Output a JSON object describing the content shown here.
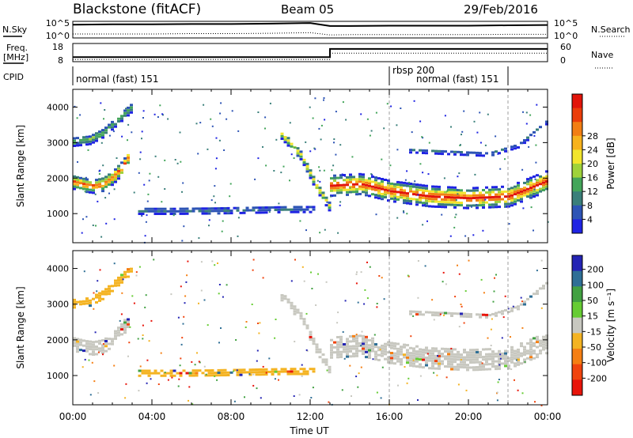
{
  "header": {
    "station": "Blackstone (fitACF)",
    "beam": "Beam 05",
    "date": "29/Feb/2016"
  },
  "chart_data": [
    {
      "type": "line",
      "panel": "noise",
      "left_label": "N.Sky",
      "right_label": "N.Search",
      "left_ticks": [
        "10^5",
        "10^0"
      ],
      "right_ticks": [
        "10^5",
        "10^0"
      ],
      "series": [
        {
          "name": "N.Sky",
          "style": "solid",
          "x": [
            0,
            2,
            4,
            6,
            8,
            10,
            12,
            13,
            14,
            16,
            18,
            20,
            22,
            24
          ],
          "y": [
            4.0,
            4.1,
            4.1,
            4.2,
            4.2,
            4.3,
            4.5,
            3.6,
            3.6,
            3.7,
            3.7,
            3.7,
            3.8,
            3.9
          ]
        },
        {
          "name": "N.Search",
          "style": "dotted",
          "x": [
            0,
            2,
            4,
            6,
            8,
            10,
            12,
            13,
            14,
            16,
            18,
            20,
            22,
            24
          ],
          "y": [
            1.2,
            1.2,
            1.2,
            1.3,
            1.3,
            1.4,
            1.6,
            0.9,
            1.0,
            1.0,
            1.0,
            1.0,
            1.1,
            1.1
          ]
        }
      ]
    },
    {
      "type": "line",
      "panel": "freq",
      "left_label": "Freq.",
      "left_unit": "[MHz]",
      "right_label": "Nave",
      "left_ticks": [
        "18",
        "8"
      ],
      "right_ticks": [
        "60",
        "0"
      ],
      "series": [
        {
          "name": "Freq.",
          "style": "solid",
          "x": [
            0,
            13.0,
            13.0,
            24
          ],
          "y": [
            10.5,
            10.5,
            15.0,
            15.0
          ]
        },
        {
          "name": "Nave",
          "style": "dotted",
          "x": [
            0,
            13.0,
            13.0,
            24
          ],
          "y": [
            7,
            7,
            28,
            28
          ]
        }
      ]
    },
    {
      "type": "table",
      "panel": "cpid",
      "label": "CPID",
      "segments": [
        {
          "start": 0,
          "end": 16,
          "text": "normal (fast) 151"
        },
        {
          "start": 16,
          "end": 22,
          "text": "rbsp 200"
        },
        {
          "start": 16,
          "end": 22,
          "text": "normal (fast) 151"
        }
      ]
    },
    {
      "type": "heatmap",
      "panel": "power",
      "ylabel": "Slant Range [km]",
      "xlim": [
        0,
        24
      ],
      "ylim": [
        180,
        4500
      ],
      "yticks": [
        1000,
        2000,
        3000,
        4000
      ],
      "colorbar_label": "Power [dB]",
      "colorbar_ticks": [
        "4",
        "8",
        "12",
        "16",
        "20",
        "24",
        "28"
      ],
      "colors": [
        "#1f23e3",
        "#2d54b5",
        "#3a7f7a",
        "#43a55a",
        "#9fd23a",
        "#f2e52c",
        "#f7b21c",
        "#f27e13",
        "#eb3d0a",
        "#e2140a"
      ],
      "bands": [
        {
          "x": [
            0.0,
            0.5,
            1.0,
            1.5,
            2.0,
            2.5,
            2.8
          ],
          "y_center": [
            1850,
            1780,
            1740,
            1800,
            2000,
            2300,
            2600
          ],
          "thickness": 380,
          "peak": 0.8
        },
        {
          "x": [
            0.0,
            0.8,
            1.5,
            2.2,
            2.9
          ],
          "y_center": [
            3000,
            3050,
            3250,
            3600,
            3950
          ],
          "thickness": 250,
          "peak": 0.35
        },
        {
          "x": [
            3.3,
            5,
            7,
            9,
            11,
            12.2
          ],
          "y_center": [
            1050,
            1050,
            1060,
            1080,
            1100,
            1100
          ],
          "thickness": 180,
          "peak": 0.15
        },
        {
          "x": [
            10.5,
            11.5,
            12.2,
            13.0
          ],
          "y_center": [
            3200,
            2600,
            1800,
            1100
          ],
          "thickness": 250,
          "peak": 0.55
        },
        {
          "x": [
            13.0,
            14.5,
            16,
            18,
            20,
            22,
            24
          ],
          "y_center": [
            1750,
            1800,
            1600,
            1450,
            1400,
            1450,
            1900
          ],
          "thickness": 560,
          "peak": 0.9
        },
        {
          "x": [
            17,
            19,
            21,
            22.5,
            24
          ],
          "y_center": [
            2750,
            2700,
            2650,
            2900,
            3600
          ],
          "thickness": 120,
          "peak": 0.15
        }
      ]
    },
    {
      "type": "heatmap",
      "panel": "velocity",
      "ylabel": "Slant Range [km]",
      "xlabel": "Time UT",
      "xlim": [
        0,
        24
      ],
      "ylim": [
        180,
        4500
      ],
      "xticks": [
        "00:00",
        "04:00",
        "08:00",
        "12:00",
        "16:00",
        "20:00",
        "00:00"
      ],
      "yticks": [
        1000,
        2000,
        3000,
        4000
      ],
      "colorbar_label": "Velocity [m s⁻¹]",
      "colorbar_ticks": [
        "200",
        "100",
        "50",
        "15",
        "-15",
        "-50",
        "-100",
        "-200"
      ],
      "colors": [
        "#2424b4",
        "#2f6f96",
        "#42a142",
        "#66cc33",
        "#c8c8c0",
        "#f4b322",
        "#f57f13",
        "#f0440e",
        "#e8140a"
      ],
      "bands": [
        {
          "x": [
            0.0,
            0.5,
            1.0,
            1.5,
            2.0,
            2.5,
            2.8
          ],
          "y_center": [
            1850,
            1780,
            1740,
            1800,
            2000,
            2300,
            2600
          ],
          "thickness": 380,
          "color": "#c8c8c0"
        },
        {
          "x": [
            0.0,
            0.8,
            1.5,
            2.2,
            2.9
          ],
          "y_center": [
            3000,
            3050,
            3250,
            3600,
            3950
          ],
          "thickness": 250,
          "color": "#f4b322"
        },
        {
          "x": [
            3.3,
            5,
            7,
            9,
            11,
            12.2
          ],
          "y_center": [
            1050,
            1050,
            1060,
            1080,
            1100,
            1100
          ],
          "thickness": 180,
          "color": "#f4b322"
        },
        {
          "x": [
            10.5,
            11.5,
            12.2,
            13.0
          ],
          "y_center": [
            3200,
            2600,
            1800,
            1100
          ],
          "thickness": 250,
          "color": "#c8c8c0"
        },
        {
          "x": [
            13.0,
            14.5,
            16,
            18,
            20,
            22,
            24
          ],
          "y_center": [
            1750,
            1800,
            1600,
            1450,
            1400,
            1450,
            1900
          ],
          "thickness": 560,
          "color": "#c8c8c0"
        },
        {
          "x": [
            17,
            19,
            21,
            22.5,
            24
          ],
          "y_center": [
            2750,
            2700,
            2650,
            2900,
            3600
          ],
          "thickness": 120,
          "color": "#c8c8c0"
        }
      ]
    }
  ]
}
